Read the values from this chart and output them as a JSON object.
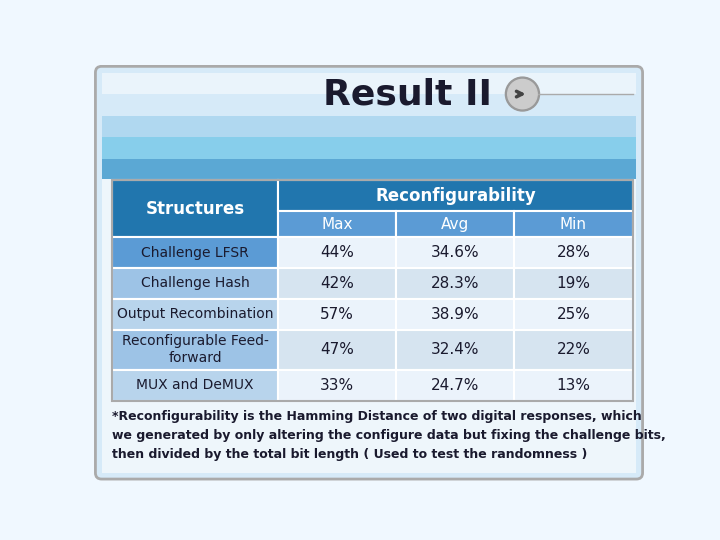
{
  "title": "Result II",
  "rows": [
    [
      "Challenge LFSR",
      "44%",
      "34.6%",
      "28%"
    ],
    [
      "Challenge Hash",
      "42%",
      "28.3%",
      "19%"
    ],
    [
      "Output Recombination",
      "57%",
      "38.9%",
      "25%"
    ],
    [
      "Reconfigurable Feed-\nforward",
      "47%",
      "32.4%",
      "22%"
    ],
    [
      "MUX and DeMUX",
      "33%",
      "24.7%",
      "13%"
    ]
  ],
  "footer": "*Reconfigurability is the Hamming Distance of two digital responses, which\nwe generated by only altering the configure data but fixing the challenge bits,\nthen divided by the total bit length ( Used to test the randomness )",
  "header_bg": "#2176AE",
  "header_text_color": "#FFFFFF",
  "title_color": "#1A1A2E",
  "footer_color": "#1A1A2E",
  "sky_colors": [
    "#5BA8D4",
    "#87CEEB",
    "#B0D8F0",
    "#D6EAF8",
    "#EAF4FB",
    "#F5FAFF"
  ],
  "row_bg_col0": [
    "#5B9BD5",
    "#9DC3E6",
    "#B8D4EC",
    "#9DC3E6",
    "#B8D4EC"
  ],
  "row_bg_data": [
    "#EBF3FB",
    "#D6E4F0",
    "#EBF3FB",
    "#D6E4F0",
    "#EBF3FB"
  ],
  "subheader_bg": "#5B9BD5",
  "overall_bg": "#F0F8FF",
  "lower_bg": "#EEF6FB"
}
